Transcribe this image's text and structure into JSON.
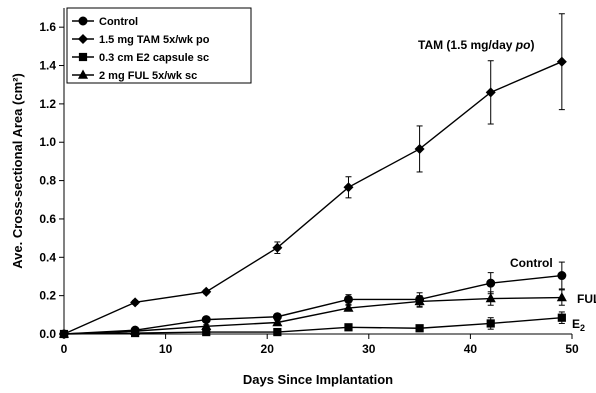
{
  "chart_data": {
    "type": "line",
    "xlabel": "Days Since Implantation",
    "ylabel": "Ave. Cross-sectional Area (cm²)",
    "xlim": [
      0,
      50
    ],
    "ylim": [
      0,
      1.7
    ],
    "xticks": [
      0,
      10,
      20,
      30,
      40,
      50
    ],
    "yticks": [
      0.0,
      0.2,
      0.4,
      0.6,
      0.8,
      1.0,
      1.2,
      1.4,
      1.6
    ],
    "grid": false,
    "legend_position": "top-left",
    "series": [
      {
        "name": "Control",
        "marker": "circle",
        "x": [
          0,
          7,
          14,
          21,
          28,
          35,
          42,
          49
        ],
        "values": [
          0.0,
          0.02,
          0.075,
          0.09,
          0.18,
          0.18,
          0.265,
          0.305
        ],
        "errors": [
          0,
          0.005,
          0.01,
          0.015,
          0.025,
          0.035,
          0.055,
          0.07
        ]
      },
      {
        "name": "1.5 mg TAM 5x/wk po",
        "marker": "diamond",
        "x": [
          0,
          7,
          14,
          21,
          28,
          35,
          42,
          49
        ],
        "values": [
          0.0,
          0.165,
          0.22,
          0.45,
          0.765,
          0.965,
          1.26,
          1.42
        ],
        "errors": [
          0,
          0.01,
          0.01,
          0.03,
          0.055,
          0.12,
          0.165,
          0.25
        ]
      },
      {
        "name": "0.3 cm E2 capsule sc",
        "marker": "square",
        "x": [
          0,
          7,
          14,
          21,
          28,
          35,
          42,
          49
        ],
        "values": [
          0.0,
          0.005,
          0.01,
          0.01,
          0.035,
          0.03,
          0.055,
          0.085
        ],
        "errors": [
          0,
          0.003,
          0.004,
          0.005,
          0.01,
          0.015,
          0.03,
          0.03
        ]
      },
      {
        "name": "2 mg FUL 5x/wk sc",
        "marker": "triangle",
        "x": [
          0,
          7,
          14,
          21,
          28,
          35,
          42,
          49
        ],
        "values": [
          0.0,
          0.015,
          0.04,
          0.06,
          0.135,
          0.17,
          0.185,
          0.19
        ],
        "errors": [
          0,
          0.004,
          0.008,
          0.01,
          0.015,
          0.03,
          0.035,
          0.04
        ]
      }
    ],
    "annotations": {
      "tam": "TAM (1.5 mg/day po)",
      "control": "Control",
      "ful": "FUL",
      "e2": "E"
    }
  }
}
